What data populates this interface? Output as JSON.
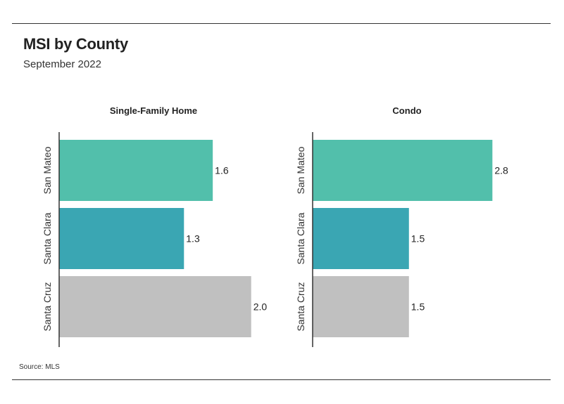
{
  "header": {
    "title": "MSI by County",
    "subtitle": "September 2022"
  },
  "footer": {
    "source": "Source:  MLS"
  },
  "colors": {
    "San Mateo": "#52bfab",
    "Santa Clara": "#3aa6b3",
    "Santa Cruz": "#c0c0c0",
    "axis": "#333333"
  },
  "chart_data": [
    {
      "type": "bar",
      "orientation": "horizontal",
      "title": "Single-Family Home",
      "categories": [
        "San Mateo",
        "Santa Clara",
        "Santa Cruz"
      ],
      "values": [
        1.6,
        1.3,
        2.0
      ],
      "value_labels": [
        "1.6",
        "1.3",
        "2.0"
      ],
      "xlim": [
        0,
        2.2
      ],
      "grid": false,
      "legend": "none"
    },
    {
      "type": "bar",
      "orientation": "horizontal",
      "title": "Condo",
      "categories": [
        "San Mateo",
        "Santa Clara",
        "Santa Cruz"
      ],
      "values": [
        2.8,
        1.5,
        1.5
      ],
      "value_labels": [
        "2.8",
        "1.5",
        "1.5"
      ],
      "xlim": [
        0,
        3.29
      ],
      "grid": false,
      "legend": "none"
    }
  ]
}
